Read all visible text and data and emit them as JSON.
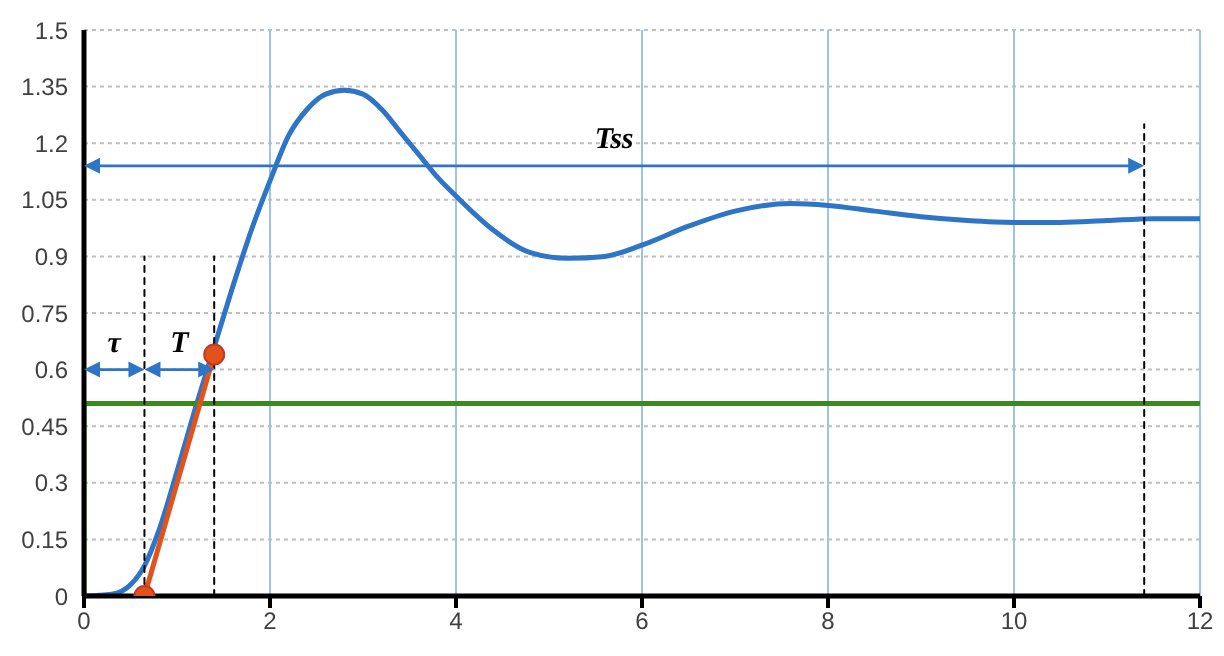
{
  "chart_data": {
    "type": "line",
    "xlim": [
      0,
      12
    ],
    "xticks": [
      0,
      2,
      4,
      6,
      8,
      10,
      12
    ],
    "ylim": [
      0,
      1.5
    ],
    "yticks": [
      0,
      0.15,
      0.3,
      0.45,
      0.6,
      0.75,
      0.9,
      1.05,
      1.2,
      1.35,
      1.5
    ],
    "grid": true,
    "marker": "none",
    "line_style": "solid",
    "series": [
      {
        "color": "#2e75c8",
        "x": [
          0,
          0.3,
          0.5,
          0.65,
          0.8,
          1.0,
          1.2,
          1.4,
          1.6,
          1.8,
          2.0,
          2.2,
          2.4,
          2.6,
          2.8,
          3.0,
          3.2,
          3.4,
          3.6,
          3.8,
          4.0,
          4.4,
          4.8,
          5.2,
          5.6,
          6.0,
          6.5,
          7.0,
          7.6,
          8.0,
          8.5,
          9.0,
          9.5,
          10.0,
          10.5,
          11.0,
          11.5,
          12.0
        ],
        "values": [
          0,
          0.005,
          0.03,
          0.08,
          0.17,
          0.33,
          0.5,
          0.66,
          0.82,
          0.97,
          1.1,
          1.22,
          1.29,
          1.33,
          1.34,
          1.33,
          1.29,
          1.23,
          1.17,
          1.11,
          1.06,
          0.97,
          0.91,
          0.895,
          0.9,
          0.93,
          0.98,
          1.02,
          1.04,
          1.035,
          1.02,
          1.005,
          0.995,
          0.99,
          0.99,
          0.995,
          1.0,
          1.0
        ]
      },
      {
        "color": "#3a8a1e",
        "x": [
          0,
          0,
          12
        ],
        "values": [
          0,
          0.51,
          0.51
        ]
      },
      {
        "color": "#e2521a",
        "x": [
          0.65,
          1.4
        ],
        "values": [
          0,
          0.64
        ],
        "marker": "circle"
      },
      {
        "color": "#000000",
        "x": [
          0.65,
          0.65,
          0.65
        ],
        "values": [
          0,
          0.6,
          0.9
        ],
        "line_style": "dashed"
      },
      {
        "color": "#000000",
        "x": [
          1.4,
          1.4,
          1.4
        ],
        "values": [
          0,
          0.6,
          0.9
        ],
        "line_style": "dashed"
      },
      {
        "color": "#000000",
        "x": [
          11.4,
          11.4,
          11.4
        ],
        "values": [
          0,
          1.14,
          1.25
        ],
        "line_style": "dashed"
      }
    ],
    "annotations": [
      "τ",
      "T",
      "Tss"
    ]
  }
}
